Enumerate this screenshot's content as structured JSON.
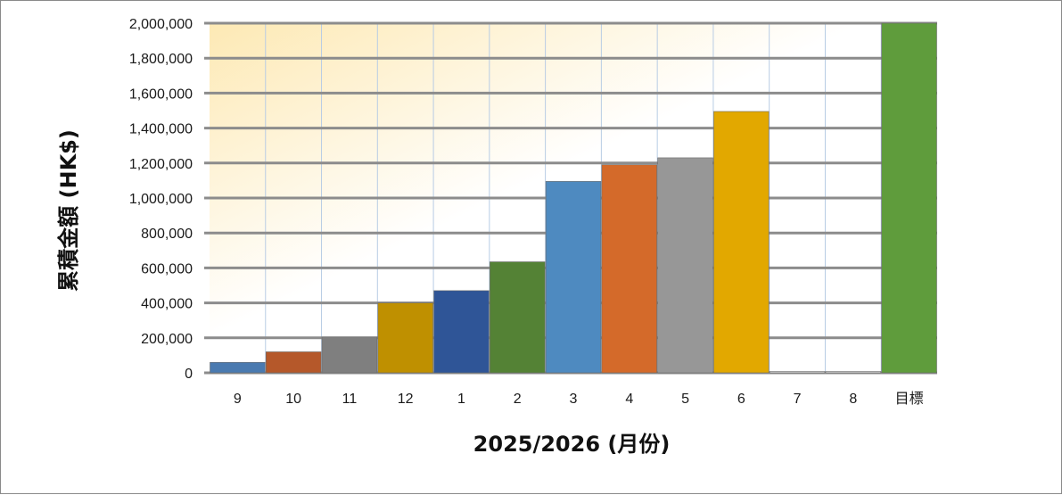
{
  "chart_data": {
    "type": "bar",
    "categories": [
      "9",
      "10",
      "11",
      "12",
      "1",
      "2",
      "3",
      "4",
      "5",
      "6",
      "7",
      "8",
      "目標"
    ],
    "values": [
      60000,
      120000,
      205000,
      400000,
      470000,
      635000,
      1095000,
      1190000,
      1230000,
      1495000,
      0,
      0,
      2000000
    ],
    "bar_colors": [
      "#4a7ab0",
      "#b5582a",
      "#7f7f7f",
      "#bf9000",
      "#2f5597",
      "#548235",
      "#4e8ac0",
      "#d46a2a",
      "#979797",
      "#e2a800",
      "#d8d8d8",
      "#d8d8d8",
      "#5f9c3c"
    ],
    "yticks": [
      "0",
      "200,000",
      "400,000",
      "600,000",
      "800,000",
      "1,000,000",
      "1,200,000",
      "1,400,000",
      "1,600,000",
      "1,800,000",
      "2,000,000"
    ],
    "ylim": [
      0,
      2000000
    ],
    "ytick_step": 200000,
    "xlabel": "2025/2026 (月份)",
    "ylabel": "累積金額 (HK$)",
    "title": "",
    "grid": true,
    "legend": "none",
    "plot_background": [
      "#fde9b4",
      "#ffffff"
    ],
    "gridline_color": "#8c8c8c",
    "vertical_gridline_color": "#b8cce4"
  }
}
